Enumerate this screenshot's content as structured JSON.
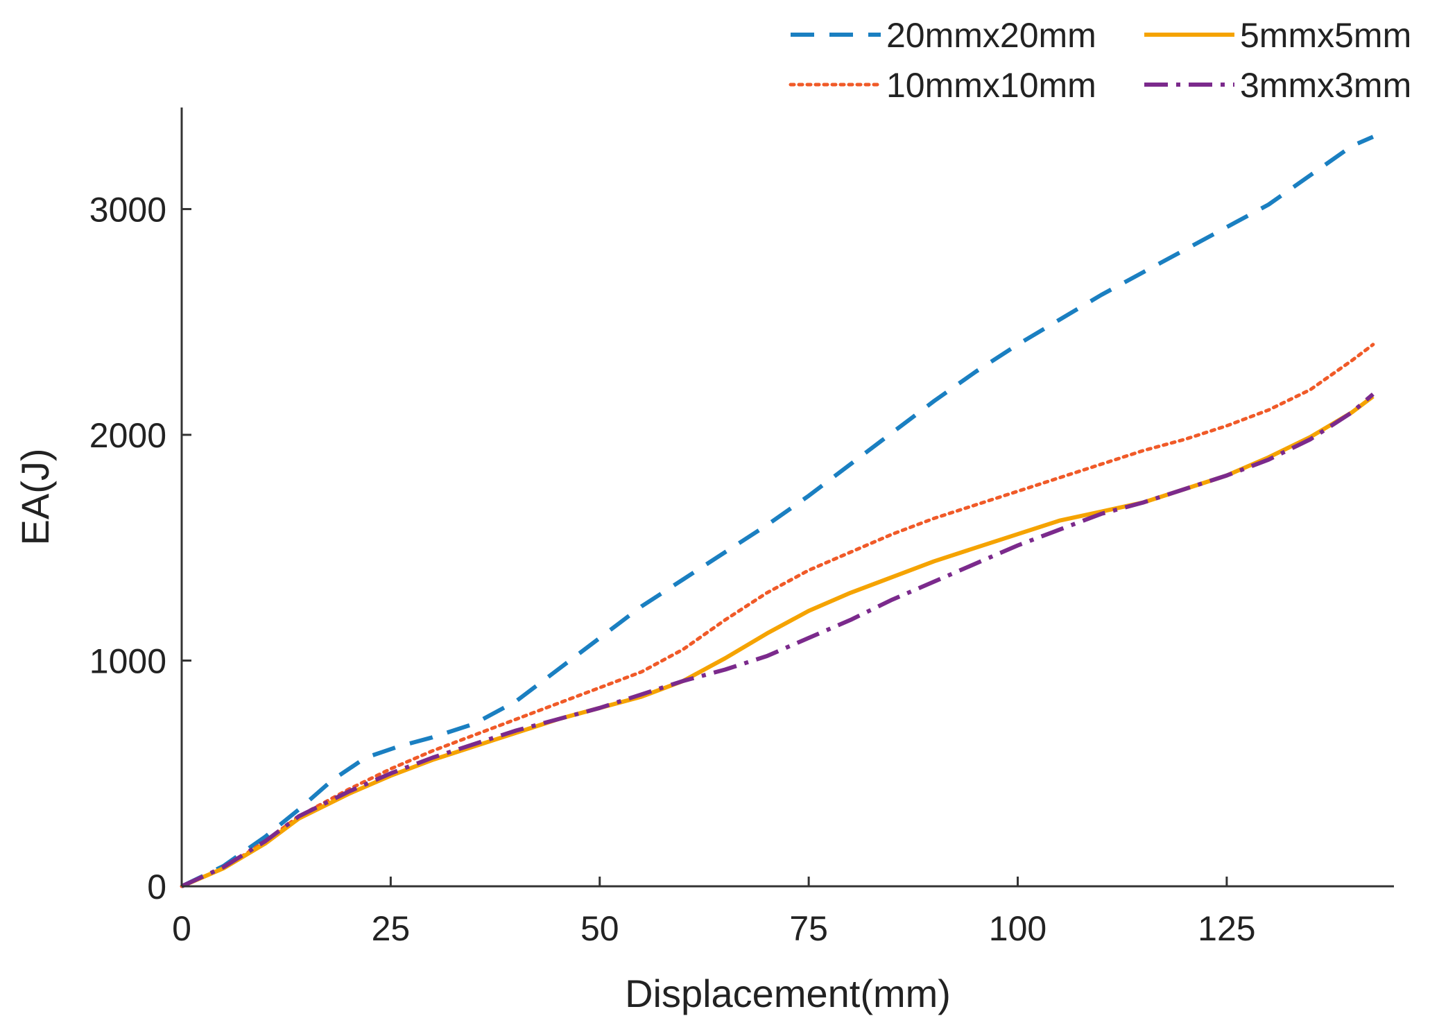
{
  "chart_data": {
    "type": "line",
    "title": "",
    "xlabel": "Displacement(mm)",
    "ylabel": "EA(J)",
    "xlim": [
      0,
      145
    ],
    "ylim": [
      0,
      3450
    ],
    "xticks": [
      0,
      25,
      50,
      75,
      100,
      125
    ],
    "yticks": [
      0,
      1000,
      2000,
      3000
    ],
    "grid": false,
    "legend_position": "top-right",
    "series": [
      {
        "name": "20mmx20mm",
        "color": "#1a7fc1",
        "style": "dashed",
        "x": [
          0,
          5,
          10,
          14,
          18,
          22,
          26,
          30,
          35,
          40,
          45,
          50,
          55,
          60,
          65,
          70,
          75,
          80,
          85,
          90,
          95,
          100,
          105,
          110,
          115,
          120,
          125,
          130,
          135,
          140,
          142.5
        ],
        "y": [
          0,
          90,
          220,
          340,
          470,
          570,
          620,
          660,
          720,
          820,
          960,
          1100,
          1240,
          1360,
          1480,
          1600,
          1730,
          1870,
          2010,
          2150,
          2280,
          2400,
          2510,
          2620,
          2720,
          2820,
          2920,
          3020,
          3150,
          3280,
          3320
        ]
      },
      {
        "name": "10mmx10mm",
        "color": "#f05a28",
        "style": "dotted",
        "x": [
          0,
          5,
          10,
          14,
          20,
          25,
          30,
          35,
          40,
          45,
          50,
          55,
          60,
          65,
          70,
          75,
          80,
          85,
          90,
          95,
          100,
          105,
          110,
          115,
          120,
          125,
          130,
          135,
          140,
          142.5
        ],
        "y": [
          0,
          80,
          200,
          310,
          430,
          520,
          600,
          670,
          740,
          810,
          880,
          950,
          1050,
          1180,
          1300,
          1400,
          1480,
          1560,
          1630,
          1690,
          1750,
          1810,
          1870,
          1930,
          1980,
          2040,
          2110,
          2200,
          2330,
          2400
        ]
      },
      {
        "name": "5mmx5mm",
        "color": "#f5a300",
        "style": "solid",
        "x": [
          0,
          5,
          10,
          14,
          20,
          25,
          30,
          35,
          40,
          45,
          50,
          55,
          60,
          65,
          70,
          75,
          80,
          85,
          90,
          95,
          100,
          105,
          110,
          115,
          120,
          125,
          130,
          135,
          140,
          142.5
        ],
        "y": [
          0,
          80,
          190,
          300,
          410,
          490,
          560,
          620,
          680,
          740,
          790,
          840,
          910,
          1010,
          1120,
          1220,
          1300,
          1370,
          1440,
          1500,
          1560,
          1620,
          1660,
          1700,
          1760,
          1820,
          1900,
          1990,
          2100,
          2170
        ]
      },
      {
        "name": "3mmx3mm",
        "color": "#7b2a8c",
        "style": "dashdot",
        "x": [
          0,
          5,
          10,
          14,
          20,
          25,
          30,
          35,
          40,
          45,
          50,
          55,
          60,
          65,
          70,
          75,
          80,
          85,
          90,
          95,
          100,
          105,
          110,
          115,
          120,
          125,
          130,
          135,
          140,
          142.5
        ],
        "y": [
          0,
          85,
          200,
          310,
          420,
          500,
          570,
          630,
          690,
          740,
          790,
          850,
          910,
          960,
          1020,
          1100,
          1180,
          1270,
          1350,
          1430,
          1510,
          1580,
          1650,
          1700,
          1760,
          1820,
          1890,
          1980,
          2100,
          2180
        ]
      }
    ]
  }
}
